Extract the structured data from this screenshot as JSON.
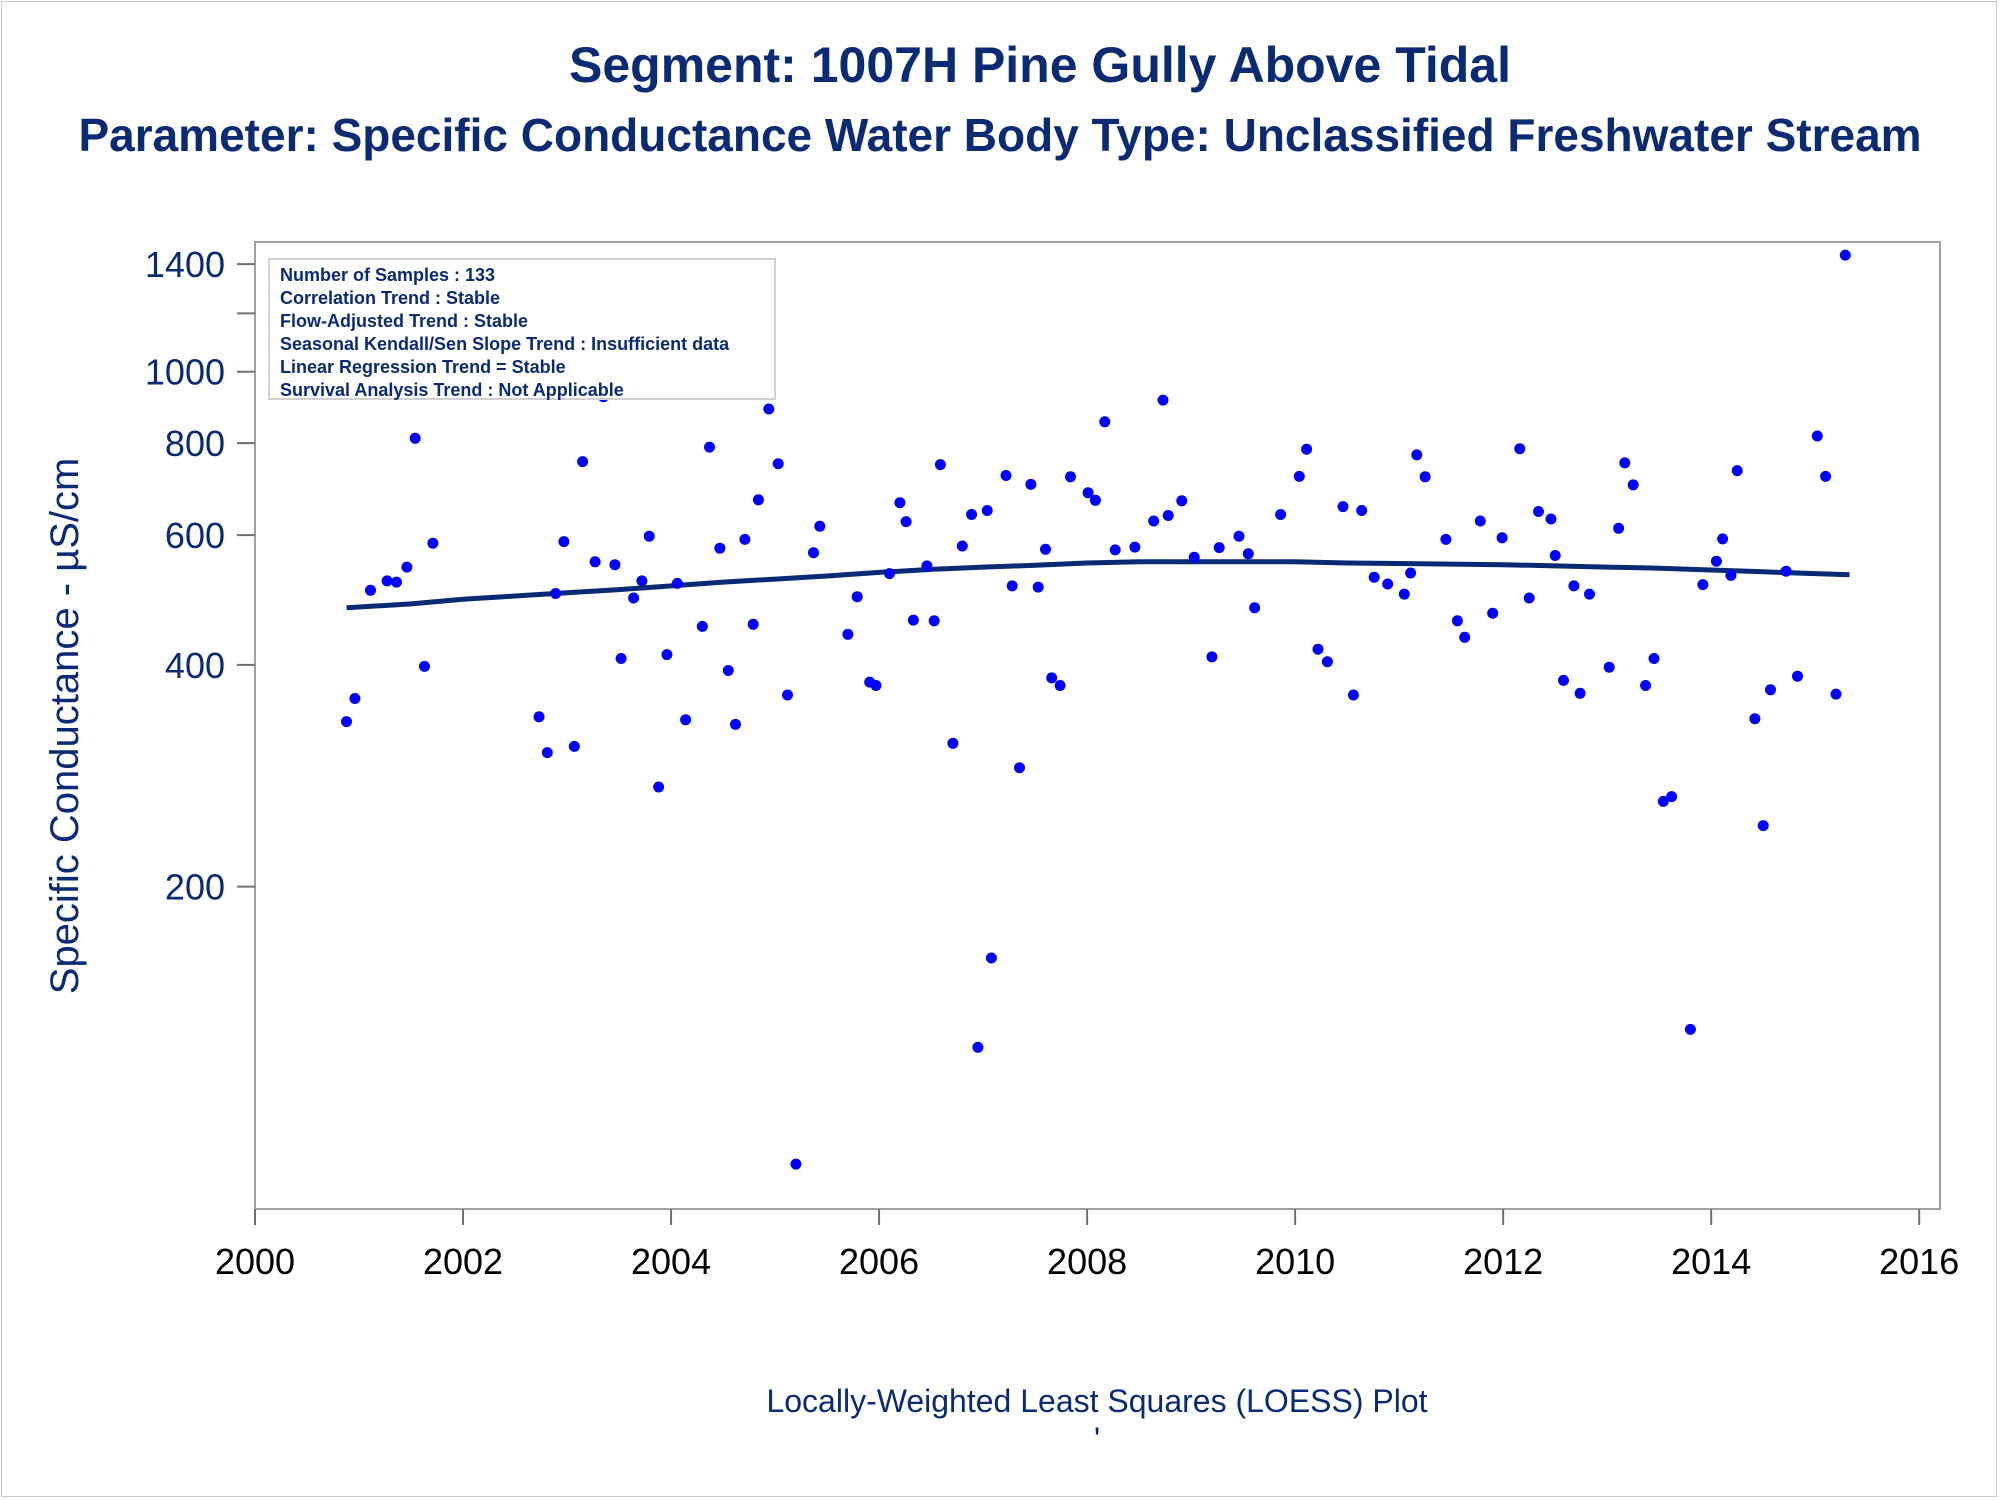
{
  "chart_data": {
    "type": "scatter",
    "title": "Segment: 1007H  Pine Gully Above Tidal",
    "subtitle": "Parameter: Specific Conductance   Water Body Type: Unclassified Freshwater Stream",
    "ylabel": "Specific Conductance -  µS/cm",
    "xlabel": "",
    "footnote": "Locally-Weighted Least Squares (LOESS) Plot",
    "footnote_mark": "'",
    "y_scale": "log",
    "ylim": [
      73,
      1500
    ],
    "xlim": [
      2000.0,
      2016.2
    ],
    "x_ticks": [
      "2000",
      "2002",
      "2004",
      "2006",
      "2008",
      "2010",
      "2012",
      "2014",
      "2016"
    ],
    "x_tick_values": [
      2000,
      2002,
      2004,
      2006,
      2008,
      2010,
      2012,
      2014,
      2016
    ],
    "y_ticks": [
      "200",
      "400",
      "600",
      "800",
      "1000",
      "1400"
    ],
    "y_tick_values": [
      200,
      400,
      600,
      800,
      1000,
      1400
    ],
    "y_minor_ticks": [
      1200
    ],
    "grid": false,
    "stats_box": [
      "Number of Samples : 133",
      "Correlation Trend : Stable",
      "Flow-Adjusted Trend : Stable",
      "Seasonal Kendall/Sen Slope Trend : Insufficient data",
      "Linear Regression Trend = Stable",
      "Survival Analysis Trend : Not Applicable"
    ],
    "point_color": "#0000ff",
    "line_color": "#0a2a73",
    "series": [
      {
        "type": "scatter",
        "x": [
          2000.88,
          2000.96,
          2001.11,
          2001.27,
          2001.36,
          2001.46,
          2001.54,
          2001.63,
          2001.71,
          2002.73,
          2002.81,
          2002.89,
          2002.97,
          2003.07,
          2003.15,
          2003.27,
          2003.35,
          2003.46,
          2003.52,
          2003.64,
          2003.72,
          2003.79,
          2003.88,
          2003.96,
          2004.06,
          2004.14,
          2004.3,
          2004.37,
          2004.47,
          2004.55,
          2004.62,
          2004.71,
          2004.79,
          2004.84,
          2004.94,
          2005.03,
          2005.12,
          2005.2,
          2005.37,
          2005.43,
          2005.7,
          2005.79,
          2005.91,
          2005.97,
          2006.1,
          2006.2,
          2006.26,
          2006.33,
          2006.46,
          2006.53,
          2006.59,
          2006.71,
          2006.8,
          2006.89,
          2006.95,
          2007.04,
          2007.08,
          2007.22,
          2007.28,
          2007.35,
          2007.46,
          2007.53,
          2007.6,
          2007.66,
          2007.74,
          2007.84,
          2008.01,
          2008.08,
          2008.17,
          2008.27,
          2008.46,
          2008.64,
          2008.73,
          2008.78,
          2008.91,
          2009.03,
          2009.2,
          2009.27,
          2009.46,
          2009.55,
          2009.61,
          2009.86,
          2010.04,
          2010.11,
          2010.22,
          2010.31,
          2010.46,
          2010.56,
          2010.64,
          2010.76,
          2010.89,
          2011.05,
          2011.11,
          2011.17,
          2011.25,
          2011.45,
          2011.56,
          2011.63,
          2011.78,
          2011.9,
          2011.99,
          2012.16,
          2012.25,
          2012.34,
          2012.46,
          2012.5,
          2012.58,
          2012.68,
          2012.74,
          2012.83,
          2013.02,
          2013.11,
          2013.17,
          2013.25,
          2013.37,
          2013.45,
          2013.54,
          2013.62,
          2013.8,
          2013.92,
          2014.05,
          2014.11,
          2014.19,
          2014.25,
          2014.42,
          2014.5,
          2014.57,
          2014.72,
          2014.83,
          2015.02,
          2015.1,
          2015.2,
          2015.29
        ],
        "y": [
          335,
          360,
          505,
          520,
          518,
          543,
          812,
          398,
          585,
          340,
          304,
          500,
          588,
          310,
          755,
          552,
          925,
          547,
          408,
          493,
          520,
          598,
          273,
          413,
          516,
          337,
          451,
          790,
          576,
          393,
          332,
          592,
          454,
          670,
          890,
          750,
          364,
          84,
          568,
          617,
          440,
          495,
          379,
          375,
          532,
          664,
          626,
          460,
          545,
          459,
          748,
          313,
          580,
          640,
          121,
          648,
          160,
          723,
          512,
          290,
          703,
          510,
          574,
          384,
          375,
          720,
          685,
          669,
          855,
          573,
          578,
          627,
          915,
          638,
          668,
          560,
          410,
          577,
          598,
          566,
          478,
          640,
          721,
          785,
          420,
          404,
          656,
          364,
          648,
          526,
          515,
          499,
          533,
          771,
          720,
          592,
          459,
          436,
          627,
          470,
          595,
          786,
          493,
          646,
          631,
          563,
          381,
          512,
          366,
          499,
          397,
          613,
          752,
          702,
          375,
          408,
          261,
          265,
          128,
          514,
          553,
          593,
          529,
          734,
          338,
          242,
          370,
          536,
          386,
          818,
          721,
          365,
          1440
        ],
        "note": "y values near the plot's lower/upper edge are estimated from the log axis"
      },
      {
        "type": "line",
        "name": "",
        "x": [
          2000.88,
          2001.5,
          2002.0,
          2002.5,
          2003.0,
          2003.5,
          2004.0,
          2004.5,
          2005.0,
          2005.5,
          2006.0,
          2006.5,
          2007.0,
          2007.5,
          2008.0,
          2008.5,
          2009.0,
          2009.5,
          2010.0,
          2010.5,
          2011.0,
          2011.5,
          2012.0,
          2012.5,
          2013.0,
          2013.5,
          2014.0,
          2014.5,
          2015.0,
          2015.33
        ],
        "y": [
          478,
          484,
          491,
          496,
          501,
          506,
          512,
          518,
          523,
          528,
          534,
          539,
          543,
          546,
          550,
          552,
          552,
          552,
          552,
          550,
          549,
          548,
          547,
          545,
          543,
          541,
          538,
          535,
          532,
          530
        ]
      }
    ]
  }
}
